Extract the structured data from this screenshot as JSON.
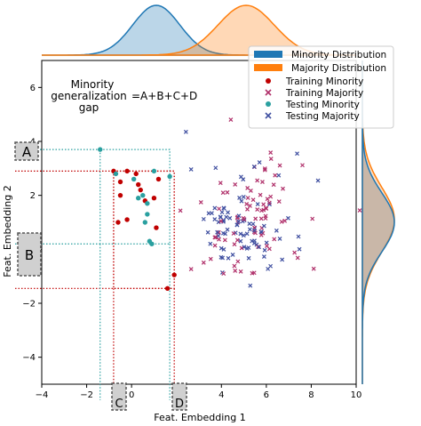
{
  "chart_data": {
    "type": "scatter",
    "xlabel": "Feat. Embedding 1",
    "ylabel": "Feat. Embedding 2",
    "xlim": [
      -4,
      10
    ],
    "ylim": [
      -5,
      7
    ],
    "xticks": [
      -4,
      -2,
      0,
      2,
      4,
      6,
      8,
      10
    ],
    "yticks": [
      -4,
      -2,
      0,
      2,
      4,
      6
    ],
    "annotation": {
      "line1": "Minority",
      "line2": "generalization",
      "line3": "gap",
      "formula": "=A+B+C+D"
    },
    "region_labels": {
      "A": "A",
      "B": "B",
      "C": "C",
      "D": "D"
    },
    "colors": {
      "minority_dist": "#1f77b4",
      "majority_dist": "#ff7f0e",
      "training_minority": "#c00000",
      "training_majority": "#b0306a",
      "testing_minority": "#2aa0a0",
      "testing_majority": "#3f4fa0",
      "testing_box": "#2aa0a0",
      "training_box": "#c00000"
    },
    "legend": {
      "minority_distribution": "Minority Distribution",
      "majority_distribution": "Majority Distribution",
      "training_minority": "Training Minority",
      "training_majority": "Training Majority",
      "testing_minority": "Testing Minority",
      "testing_majority": "Testing Majority"
    },
    "legend_position": "top-right",
    "training_box": {
      "x": [
        -0.8,
        1.9
      ],
      "y": [
        -1.45,
        2.9
      ]
    },
    "testing_box": {
      "x": [
        -1.4,
        1.7
      ],
      "y": [
        0.2,
        3.7
      ]
    },
    "series": [
      {
        "name": "Training Minority",
        "points": [
          [
            -0.8,
            2.9
          ],
          [
            -0.2,
            2.9
          ],
          [
            0.2,
            2.8
          ],
          [
            -0.5,
            2.5
          ],
          [
            0.3,
            2.4
          ],
          [
            0.4,
            2.2
          ],
          [
            -0.5,
            2.0
          ],
          [
            0.6,
            1.8
          ],
          [
            1.0,
            1.9
          ],
          [
            1.2,
            2.6
          ],
          [
            -0.6,
            1.0
          ],
          [
            -0.2,
            1.1
          ],
          [
            1.1,
            0.8
          ],
          [
            1.9,
            -0.95
          ],
          [
            1.6,
            -1.45
          ]
        ]
      },
      {
        "name": "Testing Minority",
        "points": [
          [
            -1.4,
            3.7
          ],
          [
            -0.7,
            2.8
          ],
          [
            0.1,
            2.6
          ],
          [
            0.5,
            2.0
          ],
          [
            0.3,
            1.9
          ],
          [
            0.7,
            1.7
          ],
          [
            0.7,
            1.3
          ],
          [
            0.6,
            1.0
          ],
          [
            0.8,
            0.3
          ],
          [
            0.9,
            0.2
          ],
          [
            1.7,
            2.7
          ],
          [
            1.0,
            2.9
          ]
        ]
      }
    ],
    "majority_cloud": {
      "center": [
        5.1,
        1.0
      ],
      "spread": [
        1.3,
        1.15
      ],
      "count": 170
    }
  }
}
